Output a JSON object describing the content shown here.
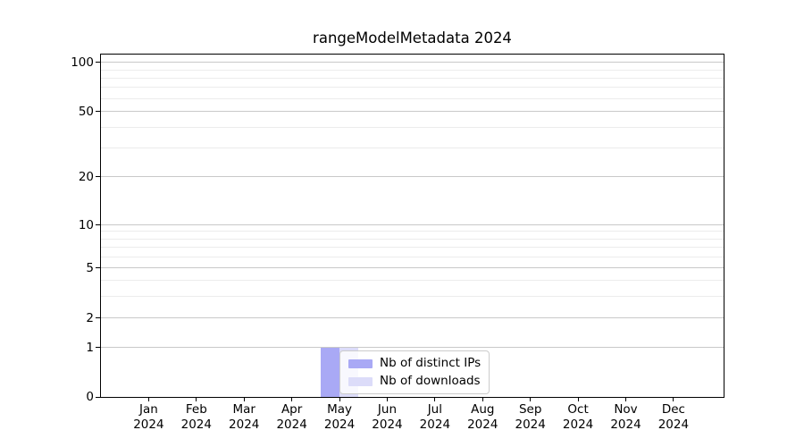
{
  "chart_data": {
    "type": "bar",
    "title": "rangeModelMetadata 2024",
    "categories": [
      {
        "month": "Jan",
        "year": "2024"
      },
      {
        "month": "Feb",
        "year": "2024"
      },
      {
        "month": "Mar",
        "year": "2024"
      },
      {
        "month": "Apr",
        "year": "2024"
      },
      {
        "month": "May",
        "year": "2024"
      },
      {
        "month": "Jun",
        "year": "2024"
      },
      {
        "month": "Jul",
        "year": "2024"
      },
      {
        "month": "Aug",
        "year": "2024"
      },
      {
        "month": "Sep",
        "year": "2024"
      },
      {
        "month": "Oct",
        "year": "2024"
      },
      {
        "month": "Nov",
        "year": "2024"
      },
      {
        "month": "Dec",
        "year": "2024"
      }
    ],
    "series": [
      {
        "name": "Nb of distinct IPs",
        "color": "#a9a9f5",
        "values": [
          0,
          0,
          0,
          0,
          1,
          0,
          0,
          0,
          0,
          0,
          0,
          0
        ]
      },
      {
        "name": "Nb of downloads",
        "color": "#dcdcf9",
        "values": [
          0,
          0,
          0,
          0,
          1,
          0,
          0,
          0,
          0,
          0,
          0,
          0
        ]
      }
    ],
    "xlabel": "",
    "ylabel": "",
    "yscale": "symlog (log 1-100, linear 0-1)",
    "y_ticks": [
      100,
      50,
      20,
      10,
      5,
      2,
      1,
      0
    ],
    "y_minor_gridlines": [
      3,
      4,
      6,
      7,
      8,
      9,
      30,
      40,
      60,
      70,
      80,
      90
    ],
    "ylim": [
      0,
      112
    ],
    "grid": "horizontal, major and minor",
    "legend_position": "inside axes, lower area over May/Jun bars"
  },
  "style": {
    "background": "#ffffff",
    "major_grid_color": "#c9c9c9",
    "minor_grid_color": "#ececec",
    "axis_color": "#000000",
    "text_color": "#000000",
    "legend_border_color": "#cccccc",
    "legend_background": "rgba(255,255,255,0.8)"
  }
}
